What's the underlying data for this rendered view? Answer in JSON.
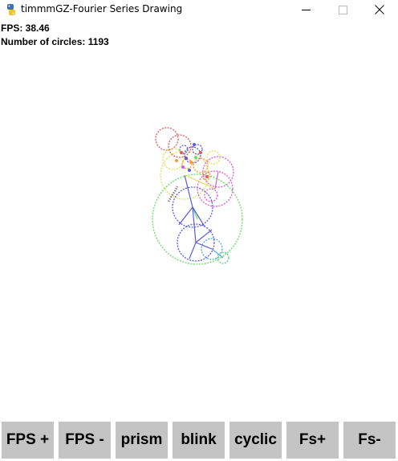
{
  "window": {
    "title": "timmmGZ-Fourier Series Drawing",
    "icon": "python-icon"
  },
  "hud": {
    "fps_text": "FPS: 38.46",
    "circles_text": "Number of circles: 1193"
  },
  "buttons": [
    {
      "label": "FPS +"
    },
    {
      "label": "FPS -"
    },
    {
      "label": "prism"
    },
    {
      "label": "blink"
    },
    {
      "label": "cyclic"
    },
    {
      "label": "Fs+"
    },
    {
      "label": "Fs-"
    }
  ],
  "colors": {
    "button_bg": "#c4c4c4",
    "circle_palette": [
      "#e05a5a",
      "#5a5ae0",
      "#66dd66",
      "#e0e055",
      "#d85ad8",
      "#ff9a2a",
      "#55cccc"
    ]
  }
}
